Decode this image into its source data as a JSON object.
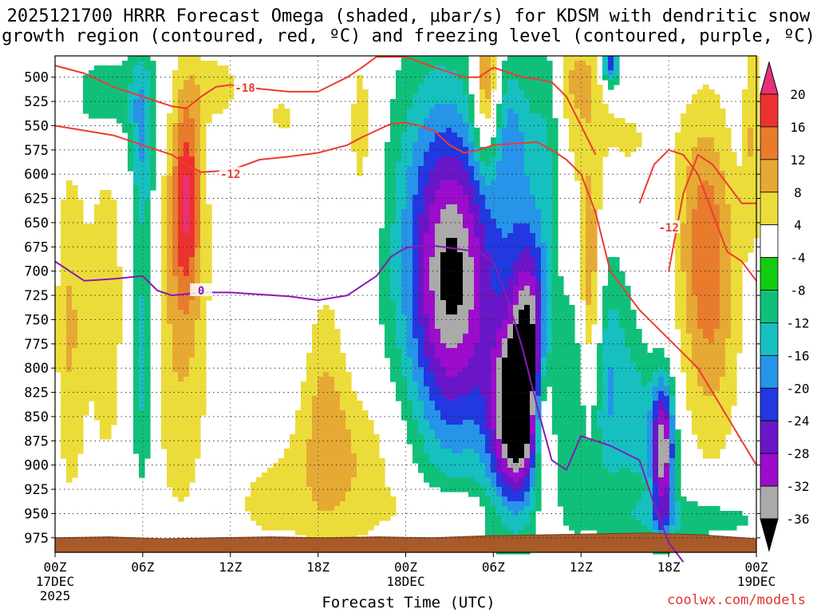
{
  "title_line1": "2025121700 HRRR Forecast Omega (shaded, μbar/s) for KDSM with dendritic snow",
  "title_line2": "growth region (contoured, red, ºC) and freezing level (contoured, purple, ºC)",
  "credit": "coolwx.com/models",
  "chart_data": {
    "type": "heatmap",
    "title": "2025121700 HRRR Forecast Omega (shaded, μbar/s) for KDSM with dendritic snow growth region (contoured, red, ºC) and freezing level (contoured, purple, ºC)",
    "xlabel": "Forecast Time (UTC)",
    "ylabel": "",
    "x_range_hours": [
      0,
      48
    ],
    "y_range_hPa": [
      478,
      990
    ],
    "y_ticks": [
      500,
      525,
      550,
      575,
      600,
      625,
      650,
      675,
      700,
      725,
      750,
      775,
      800,
      825,
      850,
      875,
      900,
      925,
      950,
      975
    ],
    "x_ticks": [
      {
        "hour": 0,
        "lines": [
          "00Z",
          "17DEC",
          "2025"
        ]
      },
      {
        "hour": 6,
        "lines": [
          "06Z"
        ]
      },
      {
        "hour": 12,
        "lines": [
          "12Z"
        ]
      },
      {
        "hour": 18,
        "lines": [
          "18Z"
        ]
      },
      {
        "hour": 24,
        "lines": [
          "00Z",
          "18DEC"
        ]
      },
      {
        "hour": 30,
        "lines": [
          "06Z"
        ]
      },
      {
        "hour": 36,
        "lines": [
          "12Z"
        ]
      },
      {
        "hour": 42,
        "lines": [
          "18Z"
        ]
      },
      {
        "hour": 48,
        "lines": [
          "00Z",
          "19DEC"
        ]
      }
    ],
    "grid": true,
    "colorbar": {
      "labels": [
        "20",
        "16",
        "12",
        "8",
        "4",
        "-4",
        "-8",
        "-12",
        "-16",
        "-20",
        "-24",
        "-28",
        "-32",
        "-36"
      ],
      "levels": [
        20,
        16,
        12,
        8,
        4,
        0,
        -4,
        -8,
        -12,
        -16,
        -20,
        -24,
        -28,
        -32,
        -36
      ],
      "colors": [
        "#e8307a",
        "#ec3230",
        "#e87c2c",
        "#e6aa34",
        "#ecdc3a",
        "#ffffff",
        "#12cc12",
        "#10c07a",
        "#16c0c0",
        "#2694e8",
        "#2238e0",
        "#6a16c8",
        "#9c0ccc",
        "#aaaaaa",
        "#000000"
      ]
    },
    "omega_features": [
      {
        "hour": 27.5,
        "p": 705,
        "hw": 2.6,
        "hp": 145,
        "v": -18
      },
      {
        "hour": 26.0,
        "p": 650,
        "hw": 3.4,
        "hp": 190,
        "v": -12
      },
      {
        "hour": 27.0,
        "p": 800,
        "hw": 3.6,
        "hp": 190,
        "v": -8
      },
      {
        "hour": 31.5,
        "p": 850,
        "hw": 1.7,
        "hp": 90,
        "v": -32
      },
      {
        "hour": 31.5,
        "p": 720,
        "hw": 2.2,
        "hp": 210,
        "v": -8
      },
      {
        "hour": 31.2,
        "p": 560,
        "hw": 1.2,
        "hp": 80,
        "v": -8
      },
      {
        "hour": 32.5,
        "p": 760,
        "hw": 1.2,
        "hp": 100,
        "v": -20
      },
      {
        "hour": 34.0,
        "p": 560,
        "hw": 1.4,
        "hp": 120,
        "v": -8
      },
      {
        "hour": 35.5,
        "p": 800,
        "hw": 1.6,
        "hp": 180,
        "v": -8
      },
      {
        "hour": 38.0,
        "p": 820,
        "hw": 1.6,
        "hp": 130,
        "v": -12
      },
      {
        "hour": 41.6,
        "p": 885,
        "hw": 0.8,
        "hp": 75,
        "v": -32
      },
      {
        "hour": 40.0,
        "p": 860,
        "hw": 1.0,
        "hp": 85,
        "v": -8
      },
      {
        "hour": 43.5,
        "p": 955,
        "hw": 5.0,
        "hp": 25,
        "v": -8
      },
      {
        "hour": 6.0,
        "p": 790,
        "hw": 0.9,
        "hp": 140,
        "v": -12
      },
      {
        "hour": 6.0,
        "p": 565,
        "hw": 0.9,
        "hp": 100,
        "v": -12
      },
      {
        "hour": 3.5,
        "p": 520,
        "hw": 2.8,
        "hp": 50,
        "v": -8
      },
      {
        "hour": 38.0,
        "p": 485,
        "hw": 0.6,
        "hp": 25,
        "v": -20
      },
      {
        "hour": 9.0,
        "p": 620,
        "hw": 1.0,
        "hp": 110,
        "v": 16
      },
      {
        "hour": 8.5,
        "p": 760,
        "hw": 2.2,
        "hp": 210,
        "v": 8
      },
      {
        "hour": 1.0,
        "p": 760,
        "hw": 1.0,
        "hp": 180,
        "v": 8
      },
      {
        "hour": 3.5,
        "p": 740,
        "hw": 1.6,
        "hp": 210,
        "v": 6
      },
      {
        "hour": 20.0,
        "p": 900,
        "hw": 4.5,
        "hp": 90,
        "v": 8
      },
      {
        "hour": 18.5,
        "p": 820,
        "hw": 1.4,
        "hp": 130,
        "v": 6
      },
      {
        "hour": 21.0,
        "p": 560,
        "hw": 1.2,
        "hp": 130,
        "v": 6
      },
      {
        "hour": 29.5,
        "p": 510,
        "hw": 0.9,
        "hp": 80,
        "v": 16
      },
      {
        "hour": 35.0,
        "p": 600,
        "hw": 1.0,
        "hp": 140,
        "v": 8
      },
      {
        "hour": 36.6,
        "p": 720,
        "hw": 0.8,
        "hp": 140,
        "v": 16
      },
      {
        "hour": 33.4,
        "p": 850,
        "hw": 0.7,
        "hp": 80,
        "v": 16
      },
      {
        "hour": 44.5,
        "p": 660,
        "hw": 2.0,
        "hp": 140,
        "v": 12
      },
      {
        "hour": 45.0,
        "p": 780,
        "hw": 2.0,
        "hp": 150,
        "v": 6
      },
      {
        "hour": 36.0,
        "p": 500,
        "hw": 1.6,
        "hp": 50,
        "v": 8
      },
      {
        "hour": 39.0,
        "p": 565,
        "hw": 3.0,
        "hp": 60,
        "v": 4.5
      },
      {
        "hour": 47.8,
        "p": 560,
        "hw": 0.7,
        "hp": 110,
        "v": 8
      },
      {
        "hour": 11.0,
        "p": 510,
        "hw": 1.8,
        "hp": 35,
        "v": 6
      },
      {
        "hour": 14.5,
        "p": 940,
        "hw": 2.5,
        "hp": 40,
        "v": 4.5
      },
      {
        "hour": 15.5,
        "p": 540,
        "hw": 1.5,
        "hp": 40,
        "v": 4.5
      },
      {
        "hour": 26.5,
        "p": 945,
        "hw": 3.5,
        "hp": 25,
        "v": 6
      }
    ],
    "ground_p_hPa": [
      975,
      974,
      976,
      975,
      974,
      975,
      974,
      975,
      973,
      972,
      971,
      970,
      972,
      976
    ],
    "contours": [
      {
        "name": "-18",
        "color": "#ec3c32",
        "label": "-18",
        "label_at": [
          13,
          511
        ],
        "x": [
          0,
          2,
          4,
          6,
          8,
          9,
          10,
          11,
          12,
          14,
          16,
          18,
          20,
          21,
          22,
          24,
          26,
          28,
          29,
          30,
          32,
          33,
          34,
          35,
          36,
          37
        ],
        "y": [
          488,
          496,
          510,
          520,
          530,
          532,
          520,
          510,
          508,
          512,
          515,
          515,
          500,
          490,
          479,
          479,
          490,
          500,
          500,
          490,
          500,
          502,
          505,
          520,
          550,
          580
        ]
      },
      {
        "name": "-12",
        "color": "#ec3c32",
        "label": "-12",
        "label_at": [
          12,
          600
        ],
        "x": [
          0,
          2,
          4,
          6,
          8,
          9,
          10,
          12,
          14,
          16,
          18,
          20,
          21,
          22,
          23,
          24,
          25,
          26,
          27,
          28,
          29,
          30,
          32,
          33,
          34,
          35,
          36,
          37,
          38,
          40,
          42,
          44,
          46,
          48
        ],
        "y": [
          550,
          555,
          560,
          570,
          580,
          590,
          598,
          596,
          585,
          582,
          578,
          570,
          562,
          555,
          548,
          547,
          550,
          556,
          570,
          578,
          575,
          570,
          568,
          567,
          575,
          585,
          600,
          640,
          700,
          740,
          770,
          800,
          850,
          900
        ]
      },
      {
        "name": "-12b",
        "color": "#ec3c32",
        "label": "-12",
        "label_at": [
          42,
          655
        ],
        "x": [
          42,
          43,
          44,
          45,
          46,
          47,
          48
        ],
        "y": [
          700,
          620,
          580,
          590,
          610,
          630,
          630
        ]
      },
      {
        "name": "-12c",
        "color": "#ec3c32",
        "label": "",
        "label_at": [
          0,
          0
        ],
        "x": [
          40,
          41,
          42,
          43,
          44,
          45,
          46,
          47,
          48
        ],
        "y": [
          630,
          590,
          575,
          580,
          600,
          640,
          680,
          690,
          710
        ]
      },
      {
        "name": "0",
        "color": "#8a1ab4",
        "label": "0",
        "label_at": [
          10,
          720
        ],
        "x": [
          0,
          2,
          4,
          6,
          7,
          8,
          10,
          12,
          14,
          16,
          18,
          20,
          22,
          23,
          24,
          25,
          26,
          28,
          29,
          30,
          31,
          32,
          33,
          34,
          35,
          36,
          38,
          40,
          41,
          42,
          43
        ],
        "y": [
          690,
          710,
          708,
          705,
          720,
          725,
          722,
          722,
          724,
          726,
          730,
          725,
          705,
          685,
          676,
          674,
          674,
          678,
          680,
          690,
          730,
          780,
          840,
          895,
          905,
          870,
          880,
          895,
          940,
          980,
          1000
        ]
      }
    ]
  }
}
